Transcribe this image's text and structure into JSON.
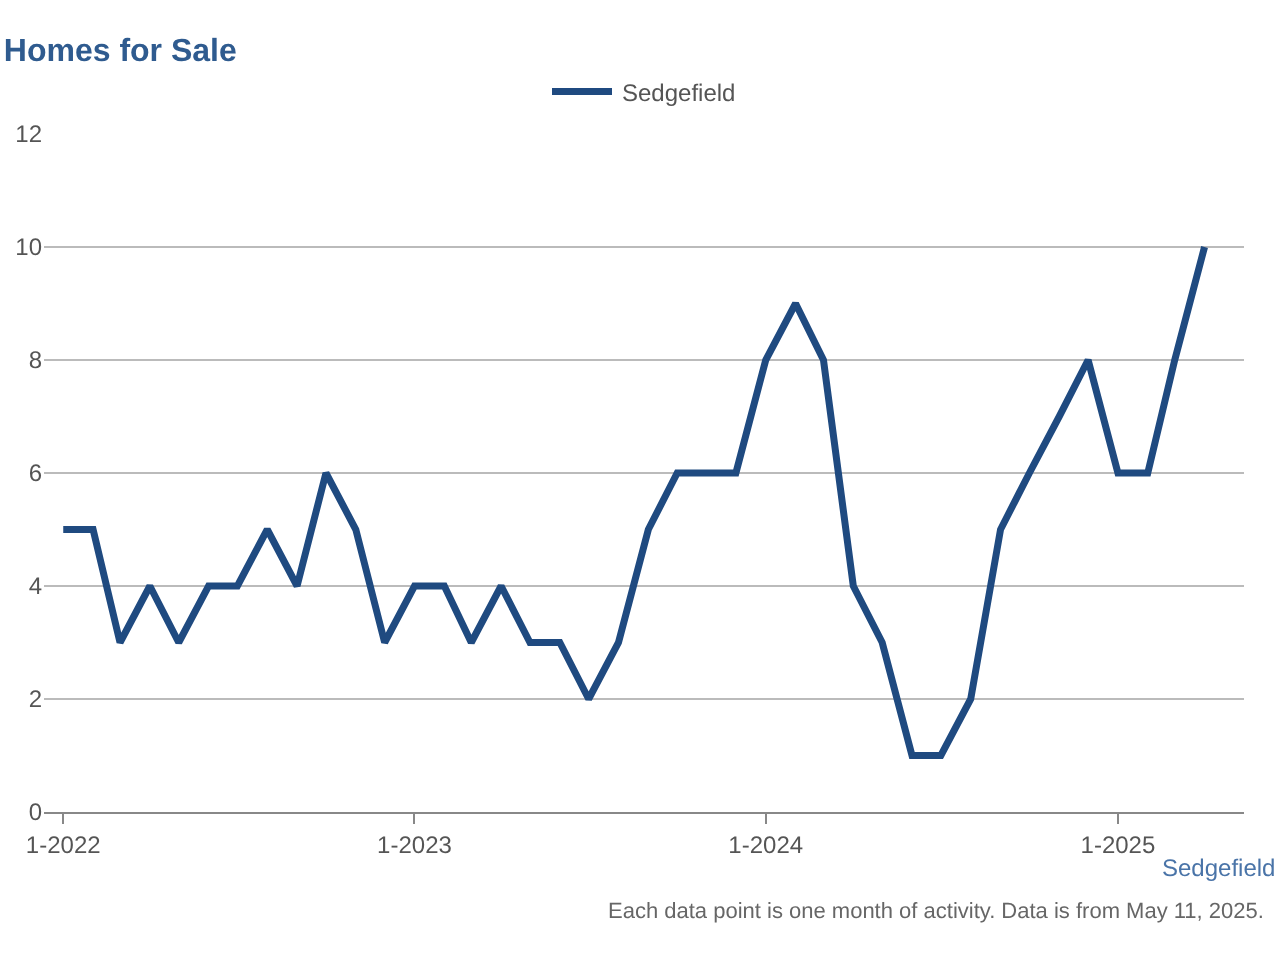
{
  "chart_data": {
    "type": "line",
    "title": "Homes for Sale",
    "xlabel": "Sedgefield",
    "annotations": [
      "Each data point is one month of activity. Data is from May 11, 2025."
    ],
    "x": [
      "2022-01",
      "2022-02",
      "2022-03",
      "2022-04",
      "2022-05",
      "2022-06",
      "2022-07",
      "2022-08",
      "2022-09",
      "2022-10",
      "2022-11",
      "2022-12",
      "2023-01",
      "2023-02",
      "2023-03",
      "2023-04",
      "2023-05",
      "2023-06",
      "2023-07",
      "2023-08",
      "2023-09",
      "2023-10",
      "2023-11",
      "2023-12",
      "2024-01",
      "2024-02",
      "2024-03",
      "2024-04",
      "2024-05",
      "2024-06",
      "2024-07",
      "2024-08",
      "2024-09",
      "2024-10",
      "2024-11",
      "2024-12",
      "2025-01",
      "2025-02",
      "2025-03",
      "2025-04"
    ],
    "series": [
      {
        "name": "Sedgefield",
        "color": "#1f4a80",
        "values": [
          5,
          5,
          3,
          4,
          3,
          4,
          4,
          5,
          4,
          6,
          5,
          3,
          4,
          4,
          3,
          4,
          3,
          3,
          2,
          3,
          5,
          6,
          6,
          6,
          8,
          9,
          8,
          4,
          3,
          1,
          1,
          2,
          5,
          6,
          7,
          8,
          6,
          6,
          8,
          10
        ]
      }
    ],
    "xlim": [
      "2021-12-12",
      "2025-05-12"
    ],
    "xticks": [
      {
        "value": "2022-01",
        "label": "1-2022"
      },
      {
        "value": "2023-01",
        "label": "1-2023"
      },
      {
        "value": "2024-01",
        "label": "1-2024"
      },
      {
        "value": "2025-01",
        "label": "1-2025"
      }
    ],
    "ylim": [
      0,
      12
    ],
    "yticks": [
      0,
      2,
      4,
      6,
      8,
      10,
      12
    ],
    "grid": "y",
    "legend": "top",
    "marker": "none",
    "line_style": "solid"
  }
}
